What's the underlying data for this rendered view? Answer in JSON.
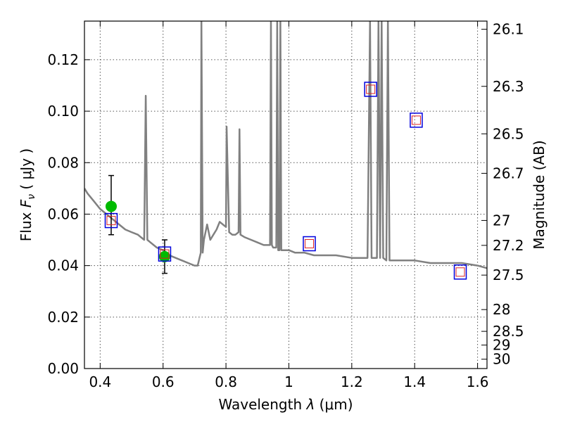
{
  "chart_data": {
    "type": "line",
    "xlabel": "Wavelength  λ (μm)",
    "ylabel": "Flux  F_ν  ( μJy )",
    "y2label": "Magnitude (AB)",
    "xlim": [
      0.35,
      1.63
    ],
    "ylim": [
      0.0,
      0.135
    ],
    "grid": true,
    "x_ticks": [
      0.4,
      0.6,
      0.8,
      1.0,
      1.2,
      1.4,
      1.6
    ],
    "x_tick_labels": [
      "0.4",
      "0.6",
      "0.8",
      "1",
      "1.2",
      "1.4",
      "1.6"
    ],
    "y_ticks": [
      0.0,
      0.02,
      0.04,
      0.06,
      0.08,
      0.1,
      0.12
    ],
    "y_tick_labels": [
      "0.00",
      "0.02",
      "0.04",
      "0.06",
      "0.08",
      "0.10",
      "0.12"
    ],
    "mag_ticks": [
      {
        "mag": 26.1,
        "label": "26.1"
      },
      {
        "mag": 26.3,
        "label": "26.3"
      },
      {
        "mag": 26.5,
        "label": "26.5"
      },
      {
        "mag": 26.7,
        "label": "26.7"
      },
      {
        "mag": 27.0,
        "label": "27"
      },
      {
        "mag": 27.2,
        "label": "27.2"
      },
      {
        "mag": 27.5,
        "label": "27.5"
      },
      {
        "mag": 28.0,
        "label": "28"
      },
      {
        "mag": 28.5,
        "label": "28.5"
      },
      {
        "mag": 29.0,
        "label": "29"
      },
      {
        "mag": 30.0,
        "label": "30"
      }
    ],
    "colors": {
      "model": "#808080",
      "observed": "#00bb00",
      "errorbar": "#000000",
      "model_phot": "#0000dd",
      "inner_box": "#dd2222",
      "grid": "#555555"
    },
    "series": [
      {
        "type": "line",
        "x": [
          0.35,
          0.36,
          0.38,
          0.4,
          0.42,
          0.44,
          0.46,
          0.48,
          0.5,
          0.52,
          0.53,
          0.54,
          0.545,
          0.55,
          0.56,
          0.58,
          0.6,
          0.62,
          0.64,
          0.66,
          0.68,
          0.7,
          0.71,
          0.72,
          0.722,
          0.726,
          0.73,
          0.74,
          0.75,
          0.76,
          0.77,
          0.78,
          0.79,
          0.8,
          0.802,
          0.81,
          0.82,
          0.83,
          0.84,
          0.843,
          0.846,
          0.86,
          0.88,
          0.9,
          0.92,
          0.94,
          0.943,
          0.946,
          0.95,
          0.96,
          0.963,
          0.966,
          0.97,
          0.973,
          0.976,
          0.98,
          1.0,
          1.02,
          1.05,
          1.08,
          1.1,
          1.15,
          1.2,
          1.25,
          1.258,
          1.263,
          1.27,
          1.28,
          1.285,
          1.29,
          1.295,
          1.3,
          1.31,
          1.315,
          1.32,
          1.35,
          1.4,
          1.45,
          1.5,
          1.55,
          1.6,
          1.63
        ],
        "y": [
          0.07,
          0.068,
          0.065,
          0.062,
          0.06,
          0.058,
          0.056,
          0.054,
          0.053,
          0.052,
          0.051,
          0.05,
          0.106,
          0.05,
          0.049,
          0.047,
          0.046,
          0.044,
          0.043,
          0.042,
          0.041,
          0.04,
          0.04,
          0.045,
          0.135,
          0.045,
          0.05,
          0.056,
          0.05,
          0.052,
          0.054,
          0.057,
          0.056,
          0.055,
          0.094,
          0.053,
          0.052,
          0.052,
          0.053,
          0.093,
          0.052,
          0.051,
          0.05,
          0.049,
          0.048,
          0.048,
          0.135,
          0.048,
          0.047,
          0.047,
          0.135,
          0.046,
          0.046,
          0.135,
          0.046,
          0.046,
          0.046,
          0.045,
          0.045,
          0.044,
          0.044,
          0.044,
          0.043,
          0.043,
          0.135,
          0.043,
          0.043,
          0.043,
          0.135,
          0.043,
          0.135,
          0.043,
          0.042,
          0.135,
          0.042,
          0.042,
          0.042,
          0.041,
          0.041,
          0.041,
          0.04,
          0.039
        ]
      },
      {
        "type": "scatter",
        "marker": "circle",
        "x": [
          0.435,
          0.605
        ],
        "y": [
          0.063,
          0.0435
        ],
        "yerr_low": [
          0.052,
          0.037
        ],
        "yerr_high": [
          0.075,
          0.05
        ]
      },
      {
        "type": "scatter",
        "marker": "square",
        "x": [
          0.435,
          0.605,
          1.065,
          1.26,
          1.405,
          1.545
        ],
        "y": [
          0.0575,
          0.0445,
          0.0485,
          0.1085,
          0.0965,
          0.0375
        ]
      }
    ]
  }
}
